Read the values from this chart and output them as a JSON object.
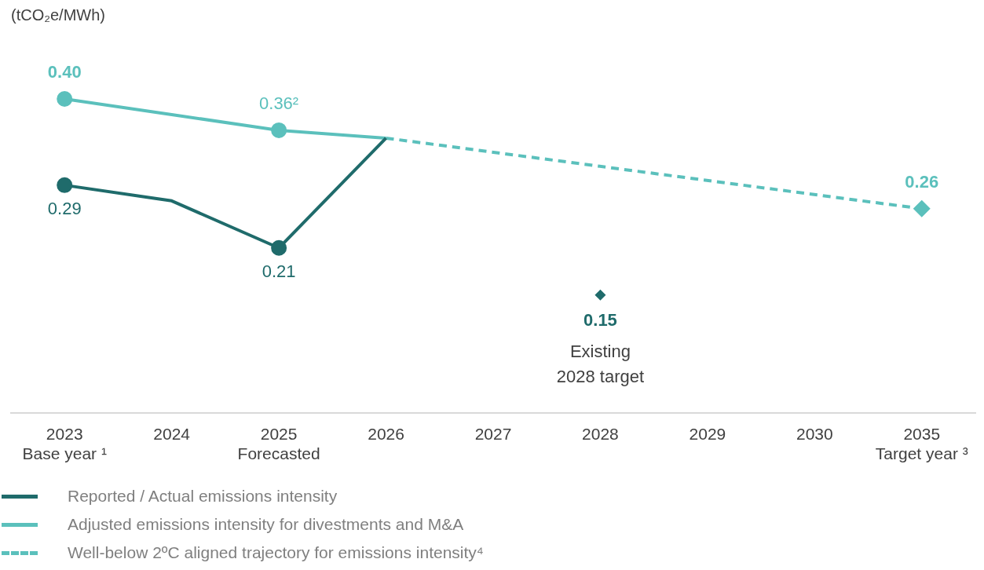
{
  "chart_data": {
    "type": "line",
    "title": "(tCO₂e/MWh)",
    "categories": [
      "2023\nBase year ¹",
      "2024",
      "2025\nForecasted",
      "2026",
      "2027",
      "2028",
      "2029",
      "2030",
      "2035\nTarget year ³"
    ],
    "tick_labels": "x",
    "grid": false,
    "legend": "bottom left",
    "marker": "circle",
    "series": [
      {
        "name": "Reported / Actual emissions intensity",
        "color": "#1f6b6b",
        "values": [
          0.29,
          0.27,
          0.21,
          0.35,
          null,
          null,
          null,
          null,
          null
        ],
        "value_labels": [
          "0.29",
          null,
          "0.21",
          null,
          null,
          null,
          null,
          null,
          null
        ],
        "line_style": "solid"
      },
      {
        "name": "Adjusted emissions intensity for divestments and M&A",
        "color": "#5bc0bc",
        "values": [
          0.4,
          0.38,
          0.36,
          0.35,
          null,
          null,
          null,
          null,
          null
        ],
        "value_labels": [
          "0.40",
          null,
          "0.36²",
          null,
          null,
          null,
          null,
          null,
          null
        ],
        "line_style": "solid"
      },
      {
        "name": "Well-below 2ºC aligned trajectory for emissions intensity⁴",
        "color": "#5bc0bc",
        "values": [
          null,
          null,
          null,
          0.35,
          null,
          null,
          null,
          null,
          0.26
        ],
        "value_labels": [
          null,
          null,
          null,
          null,
          null,
          null,
          null,
          null,
          "0.26"
        ],
        "line_style": "dashed",
        "marker": "diamond"
      },
      {
        "type": "scatter",
        "color": "#1f6b6b",
        "values": [
          null,
          null,
          null,
          null,
          null,
          0.15,
          null,
          null,
          null
        ],
        "value_labels": [
          null,
          null,
          null,
          null,
          null,
          "0.15",
          null,
          null,
          null
        ],
        "marker": "diamond"
      }
    ],
    "annotations": [
      {
        "text": "Existing\n2028 target",
        "x": "2028",
        "y": 0.15
      }
    ]
  }
}
